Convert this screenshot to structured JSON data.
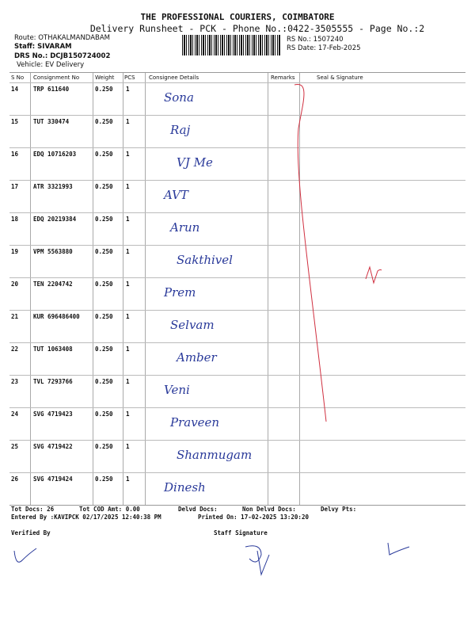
{
  "header": {
    "company": "THE PROFESSIONAL COURIERS, COIMBATORE",
    "subtitle": "Delivery Runsheet - PCK - Phone No.:0422-3505555 - Page No.:2",
    "route": "Route: OTHAKALMANDABAM",
    "staff": "Staff: SIVARAM",
    "drs": "DRS No.: DCJB150724002",
    "vehicle": "Vehicle: EV Delivery",
    "rs_no": "RS No.: 1507240",
    "rs_date": "RS Date: 17-Feb-2025"
  },
  "columns": [
    "S No",
    "Consignment No",
    "Weight",
    "PCS",
    "Consignee Details",
    "Remarks",
    "Seal & Signature"
  ],
  "rows": [
    {
      "sno": "14",
      "cn": "TRP 611640",
      "wt": "0.250",
      "pcs": "1",
      "sig": "Sona"
    },
    {
      "sno": "15",
      "cn": "TUT 330474",
      "wt": "0.250",
      "pcs": "1",
      "sig": "Raj"
    },
    {
      "sno": "16",
      "cn": "EDQ 10716203",
      "wt": "0.250",
      "pcs": "1",
      "sig": "VJ Me"
    },
    {
      "sno": "17",
      "cn": "ATR 3321993",
      "wt": "0.250",
      "pcs": "1",
      "sig": "AVT"
    },
    {
      "sno": "18",
      "cn": "EDQ 20219384",
      "wt": "0.250",
      "pcs": "1",
      "sig": "Arun"
    },
    {
      "sno": "19",
      "cn": "VPM 5563880",
      "wt": "0.250",
      "pcs": "1",
      "sig": "Sakthivel"
    },
    {
      "sno": "20",
      "cn": "TEN 2204742",
      "wt": "0.250",
      "pcs": "1",
      "sig": "Prem"
    },
    {
      "sno": "21",
      "cn": "KUR 696486400",
      "wt": "0.250",
      "pcs": "1",
      "sig": "Selvam"
    },
    {
      "sno": "22",
      "cn": "TUT 1063408",
      "wt": "0.250",
      "pcs": "1",
      "sig": "Amber"
    },
    {
      "sno": "23",
      "cn": "TVL 7293766",
      "wt": "0.250",
      "pcs": "1",
      "sig": "Veni"
    },
    {
      "sno": "24",
      "cn": "SVG 4719423",
      "wt": "0.250",
      "pcs": "1",
      "sig": "Praveen"
    },
    {
      "sno": "25",
      "cn": "SVG 4719422",
      "wt": "0.250",
      "pcs": "1",
      "sig": "Shanmugam"
    },
    {
      "sno": "26",
      "cn": "SVG 4719424",
      "wt": "0.250",
      "pcs": "1",
      "sig": "Dinesh"
    }
  ],
  "footer": {
    "tot_docs": "Tot Docs:  26",
    "tot_cod": "Tot COD Amt:    0.00",
    "delvd": "Delvd Docs:",
    "non_delvd": "Non Delvd Docs:",
    "delvy_pts": "Delvy Pts:",
    "entered": "Entered By :KAVIPCK 02/17/2025 12:40:38 PM",
    "printed": "Printed On: 17-02-2025 13:20:20",
    "verified": "Verified By",
    "staff_sig": "Staff Signature"
  },
  "ink_color": "#2a3a9a",
  "remark_ink": "#d03040"
}
